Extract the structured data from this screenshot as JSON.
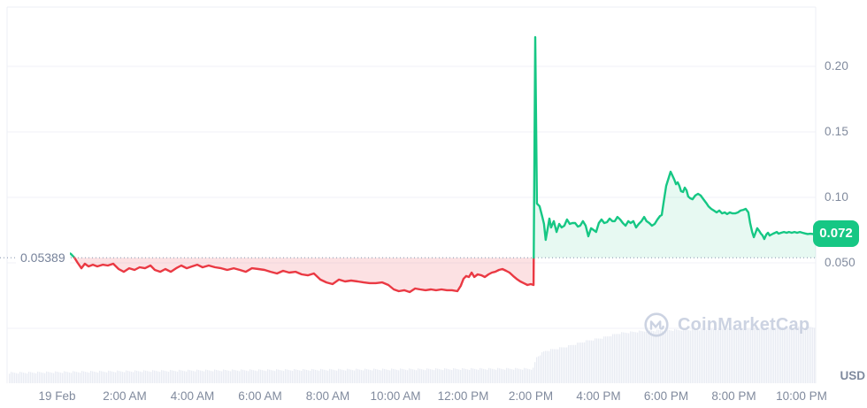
{
  "watermark": {
    "text": "CoinMarketCap"
  },
  "axis_unit": "USD",
  "baseline": {
    "label": "0.05389",
    "value": 0.05389
  },
  "current_price": {
    "label": "0.072",
    "value": 0.072
  },
  "colors": {
    "up": "#16c784",
    "down": "#ea3943",
    "up_fill": "rgba(22,199,132,0.10)",
    "down_fill": "rgba(234,57,67,0.15)",
    "grid": "#f0f2f7",
    "border": "#eceff4",
    "axis_text": "#808a9d",
    "baseline_dots": "#9aa6bc",
    "volume": "#e9ecf3",
    "watermark": "#ccd3e2",
    "badge_text": "#ffffff",
    "background": "#ffffff"
  },
  "chart_data": {
    "type": "line",
    "title": "24h cryptocurrency price chart (USD) with previous-close baseline",
    "x_axis": {
      "unit": "time",
      "range_hours": [
        -0.46,
        22.42
      ],
      "ticks": [
        {
          "label": "19 Feb",
          "hour": 0
        },
        {
          "label": "2:00 AM",
          "hour": 2
        },
        {
          "label": "4:00 AM",
          "hour": 4
        },
        {
          "label": "6:00 AM",
          "hour": 6
        },
        {
          "label": "8:00 AM",
          "hour": 8
        },
        {
          "label": "10:00 AM",
          "hour": 10
        },
        {
          "label": "12:00 PM",
          "hour": 12
        },
        {
          "label": "2:00 PM",
          "hour": 14
        },
        {
          "label": "4:00 PM",
          "hour": 16
        },
        {
          "label": "6:00 PM",
          "hour": 18
        },
        {
          "label": "8:00 PM",
          "hour": 20
        },
        {
          "label": "10:00 PM",
          "hour": 22
        }
      ]
    },
    "y_axis": {
      "unit": "USD",
      "ticks": [
        {
          "label": "0.20",
          "value": 0.2
        },
        {
          "label": "0.15",
          "value": 0.15
        },
        {
          "label": "0.10",
          "value": 0.1
        },
        {
          "label": "0.050",
          "value": 0.05
        },
        {
          "label": "",
          "value": 0.0
        }
      ]
    },
    "baseline_value": 0.05389,
    "last_price": 0.072,
    "spike_peak": 0.2223,
    "session_low": 0.0277,
    "secondary_peak": 0.1196,
    "series": [
      {
        "name": "price",
        "points": [
          [
            -0.46,
            0.0581
          ],
          [
            -0.25,
            0.0595
          ],
          [
            -0.07,
            0.0588
          ],
          [
            0.09,
            0.0595
          ],
          [
            0.25,
            0.0588
          ],
          [
            0.41,
            0.0568
          ],
          [
            0.51,
            0.0541
          ],
          [
            0.61,
            0.05
          ],
          [
            0.72,
            0.0459
          ],
          [
            0.82,
            0.0493
          ],
          [
            0.93,
            0.0473
          ],
          [
            1.06,
            0.0486
          ],
          [
            1.19,
            0.0473
          ],
          [
            1.35,
            0.0486
          ],
          [
            1.5,
            0.048
          ],
          [
            1.66,
            0.0493
          ],
          [
            1.82,
            0.0453
          ],
          [
            1.97,
            0.0432
          ],
          [
            2.13,
            0.0459
          ],
          [
            2.29,
            0.0446
          ],
          [
            2.44,
            0.0466
          ],
          [
            2.6,
            0.0459
          ],
          [
            2.76,
            0.048
          ],
          [
            2.89,
            0.0446
          ],
          [
            3.05,
            0.0432
          ],
          [
            3.2,
            0.0453
          ],
          [
            3.36,
            0.0432
          ],
          [
            3.52,
            0.0459
          ],
          [
            3.67,
            0.048
          ],
          [
            3.83,
            0.0459
          ],
          [
            3.99,
            0.0473
          ],
          [
            4.14,
            0.0486
          ],
          [
            4.3,
            0.0466
          ],
          [
            4.48,
            0.048
          ],
          [
            4.67,
            0.0466
          ],
          [
            4.85,
            0.0459
          ],
          [
            5.03,
            0.0446
          ],
          [
            5.22,
            0.0459
          ],
          [
            5.4,
            0.0446
          ],
          [
            5.58,
            0.0432
          ],
          [
            5.76,
            0.0459
          ],
          [
            5.95,
            0.0453
          ],
          [
            6.13,
            0.0446
          ],
          [
            6.31,
            0.0432
          ],
          [
            6.5,
            0.0419
          ],
          [
            6.68,
            0.0439
          ],
          [
            6.86,
            0.0426
          ],
          [
            7.05,
            0.0432
          ],
          [
            7.23,
            0.0412
          ],
          [
            7.41,
            0.0405
          ],
          [
            7.59,
            0.0419
          ],
          [
            7.78,
            0.0372
          ],
          [
            7.96,
            0.0351
          ],
          [
            8.14,
            0.0338
          ],
          [
            8.33,
            0.0372
          ],
          [
            8.51,
            0.0358
          ],
          [
            8.69,
            0.0365
          ],
          [
            8.88,
            0.0358
          ],
          [
            9.06,
            0.0351
          ],
          [
            9.24,
            0.0345
          ],
          [
            9.42,
            0.0345
          ],
          [
            9.61,
            0.0351
          ],
          [
            9.79,
            0.0331
          ],
          [
            9.95,
            0.0297
          ],
          [
            10.1,
            0.0284
          ],
          [
            10.26,
            0.0291
          ],
          [
            10.42,
            0.0277
          ],
          [
            10.58,
            0.0304
          ],
          [
            10.73,
            0.0297
          ],
          [
            10.89,
            0.0291
          ],
          [
            11.05,
            0.0297
          ],
          [
            11.2,
            0.0291
          ],
          [
            11.36,
            0.0297
          ],
          [
            11.52,
            0.0291
          ],
          [
            11.67,
            0.0291
          ],
          [
            11.83,
            0.0284
          ],
          [
            11.93,
            0.0324
          ],
          [
            12.01,
            0.0378
          ],
          [
            12.09,
            0.0399
          ],
          [
            12.17,
            0.0392
          ],
          [
            12.25,
            0.0426
          ],
          [
            12.33,
            0.0392
          ],
          [
            12.43,
            0.0412
          ],
          [
            12.54,
            0.0405
          ],
          [
            12.64,
            0.0392
          ],
          [
            12.75,
            0.0412
          ],
          [
            12.85,
            0.0426
          ],
          [
            12.95,
            0.0432
          ],
          [
            13.06,
            0.0446
          ],
          [
            13.16,
            0.0453
          ],
          [
            13.27,
            0.0439
          ],
          [
            13.37,
            0.0426
          ],
          [
            13.48,
            0.0399
          ],
          [
            13.58,
            0.0378
          ],
          [
            13.69,
            0.0358
          ],
          [
            13.79,
            0.0345
          ],
          [
            13.9,
            0.0331
          ],
          [
            14,
            0.0338
          ],
          [
            14.08,
            0.0331
          ],
          [
            14.13,
            0.2223
          ],
          [
            14.18,
            0.0953
          ],
          [
            14.26,
            0.0932
          ],
          [
            14.34,
            0.0851
          ],
          [
            14.39,
            0.0797
          ],
          [
            14.44,
            0.0676
          ],
          [
            14.5,
            0.0764
          ],
          [
            14.55,
            0.0838
          ],
          [
            14.6,
            0.077
          ],
          [
            14.68,
            0.0818
          ],
          [
            14.76,
            0.0736
          ],
          [
            14.84,
            0.0797
          ],
          [
            14.91,
            0.077
          ],
          [
            14.99,
            0.0784
          ],
          [
            15.07,
            0.0831
          ],
          [
            15.15,
            0.0797
          ],
          [
            15.23,
            0.0804
          ],
          [
            15.31,
            0.0804
          ],
          [
            15.39,
            0.0777
          ],
          [
            15.46,
            0.0784
          ],
          [
            15.54,
            0.0818
          ],
          [
            15.62,
            0.0784
          ],
          [
            15.7,
            0.0703
          ],
          [
            15.78,
            0.0764
          ],
          [
            15.86,
            0.075
          ],
          [
            15.93,
            0.0736
          ],
          [
            16.01,
            0.0804
          ],
          [
            16.09,
            0.0831
          ],
          [
            16.17,
            0.0804
          ],
          [
            16.25,
            0.0811
          ],
          [
            16.33,
            0.0838
          ],
          [
            16.41,
            0.0818
          ],
          [
            16.48,
            0.0818
          ],
          [
            16.56,
            0.0851
          ],
          [
            16.64,
            0.0831
          ],
          [
            16.72,
            0.0804
          ],
          [
            16.8,
            0.0784
          ],
          [
            16.88,
            0.0818
          ],
          [
            16.95,
            0.0804
          ],
          [
            17.03,
            0.0818
          ],
          [
            17.11,
            0.077
          ],
          [
            17.19,
            0.0797
          ],
          [
            17.27,
            0.0818
          ],
          [
            17.35,
            0.0851
          ],
          [
            17.42,
            0.0818
          ],
          [
            17.5,
            0.0804
          ],
          [
            17.58,
            0.0784
          ],
          [
            17.66,
            0.0797
          ],
          [
            17.74,
            0.0831
          ],
          [
            17.82,
            0.0858
          ],
          [
            17.87,
            0.0865
          ],
          [
            17.92,
            0.0953
          ],
          [
            18,
            0.1088
          ],
          [
            18.08,
            0.1155
          ],
          [
            18.13,
            0.1196
          ],
          [
            18.18,
            0.1169
          ],
          [
            18.24,
            0.1135
          ],
          [
            18.29,
            0.1101
          ],
          [
            18.34,
            0.1115
          ],
          [
            18.39,
            0.1088
          ],
          [
            18.44,
            0.1047
          ],
          [
            18.5,
            0.1041
          ],
          [
            18.55,
            0.1074
          ],
          [
            18.6,
            0.1054
          ],
          [
            18.65,
            0.1007
          ],
          [
            18.71,
            0.0993
          ],
          [
            18.78,
            0.0986
          ],
          [
            18.86,
            0.1014
          ],
          [
            18.94,
            0.1027
          ],
          [
            19.02,
            0.1014
          ],
          [
            19.1,
            0.0986
          ],
          [
            19.18,
            0.0959
          ],
          [
            19.25,
            0.0932
          ],
          [
            19.33,
            0.0912
          ],
          [
            19.41,
            0.0899
          ],
          [
            19.49,
            0.0885
          ],
          [
            19.57,
            0.0899
          ],
          [
            19.65,
            0.0878
          ],
          [
            19.73,
            0.0885
          ],
          [
            19.8,
            0.0872
          ],
          [
            19.88,
            0.0885
          ],
          [
            19.96,
            0.0878
          ],
          [
            20.04,
            0.0878
          ],
          [
            20.12,
            0.0885
          ],
          [
            20.2,
            0.0899
          ],
          [
            20.28,
            0.0905
          ],
          [
            20.35,
            0.0912
          ],
          [
            20.43,
            0.0885
          ],
          [
            20.48,
            0.0804
          ],
          [
            20.54,
            0.0736
          ],
          [
            20.59,
            0.0696
          ],
          [
            20.64,
            0.073
          ],
          [
            20.69,
            0.0764
          ],
          [
            20.75,
            0.0743
          ],
          [
            20.8,
            0.0723
          ],
          [
            20.85,
            0.0709
          ],
          [
            20.9,
            0.0682
          ],
          [
            20.96,
            0.0716
          ],
          [
            21.01,
            0.073
          ],
          [
            21.06,
            0.0709
          ],
          [
            21.11,
            0.0716
          ],
          [
            21.16,
            0.0723
          ],
          [
            21.22,
            0.073
          ],
          [
            21.27,
            0.0736
          ],
          [
            21.32,
            0.0723
          ],
          [
            21.4,
            0.073
          ],
          [
            21.48,
            0.0736
          ],
          [
            21.56,
            0.073
          ],
          [
            21.63,
            0.0736
          ],
          [
            21.71,
            0.073
          ],
          [
            21.79,
            0.0736
          ],
          [
            21.87,
            0.073
          ],
          [
            21.95,
            0.0736
          ],
          [
            22.03,
            0.073
          ],
          [
            22.11,
            0.0724
          ],
          [
            22.18,
            0.072
          ],
          [
            22.26,
            0.0722
          ],
          [
            22.34,
            0.072
          ],
          [
            22.42,
            0.072
          ]
        ]
      }
    ],
    "volume_profile": {
      "note": "normalized 24h volume bar heights, 0-1",
      "points": [
        [
          -1.48,
          0.18
        ],
        [
          1,
          0.2
        ],
        [
          4,
          0.22
        ],
        [
          7,
          0.23
        ],
        [
          10,
          0.24
        ],
        [
          13,
          0.25
        ],
        [
          14.05,
          0.25
        ],
        [
          14.15,
          0.45
        ],
        [
          14.4,
          0.56
        ],
        [
          15,
          0.63
        ],
        [
          15.6,
          0.73
        ],
        [
          16.1,
          0.79
        ],
        [
          16.6,
          0.87
        ],
        [
          17.2,
          0.9
        ],
        [
          17.8,
          0.92
        ],
        [
          18.7,
          0.93
        ],
        [
          20.5,
          0.95
        ],
        [
          22.42,
          0.98
        ]
      ]
    },
    "legend": null,
    "grid": true
  }
}
